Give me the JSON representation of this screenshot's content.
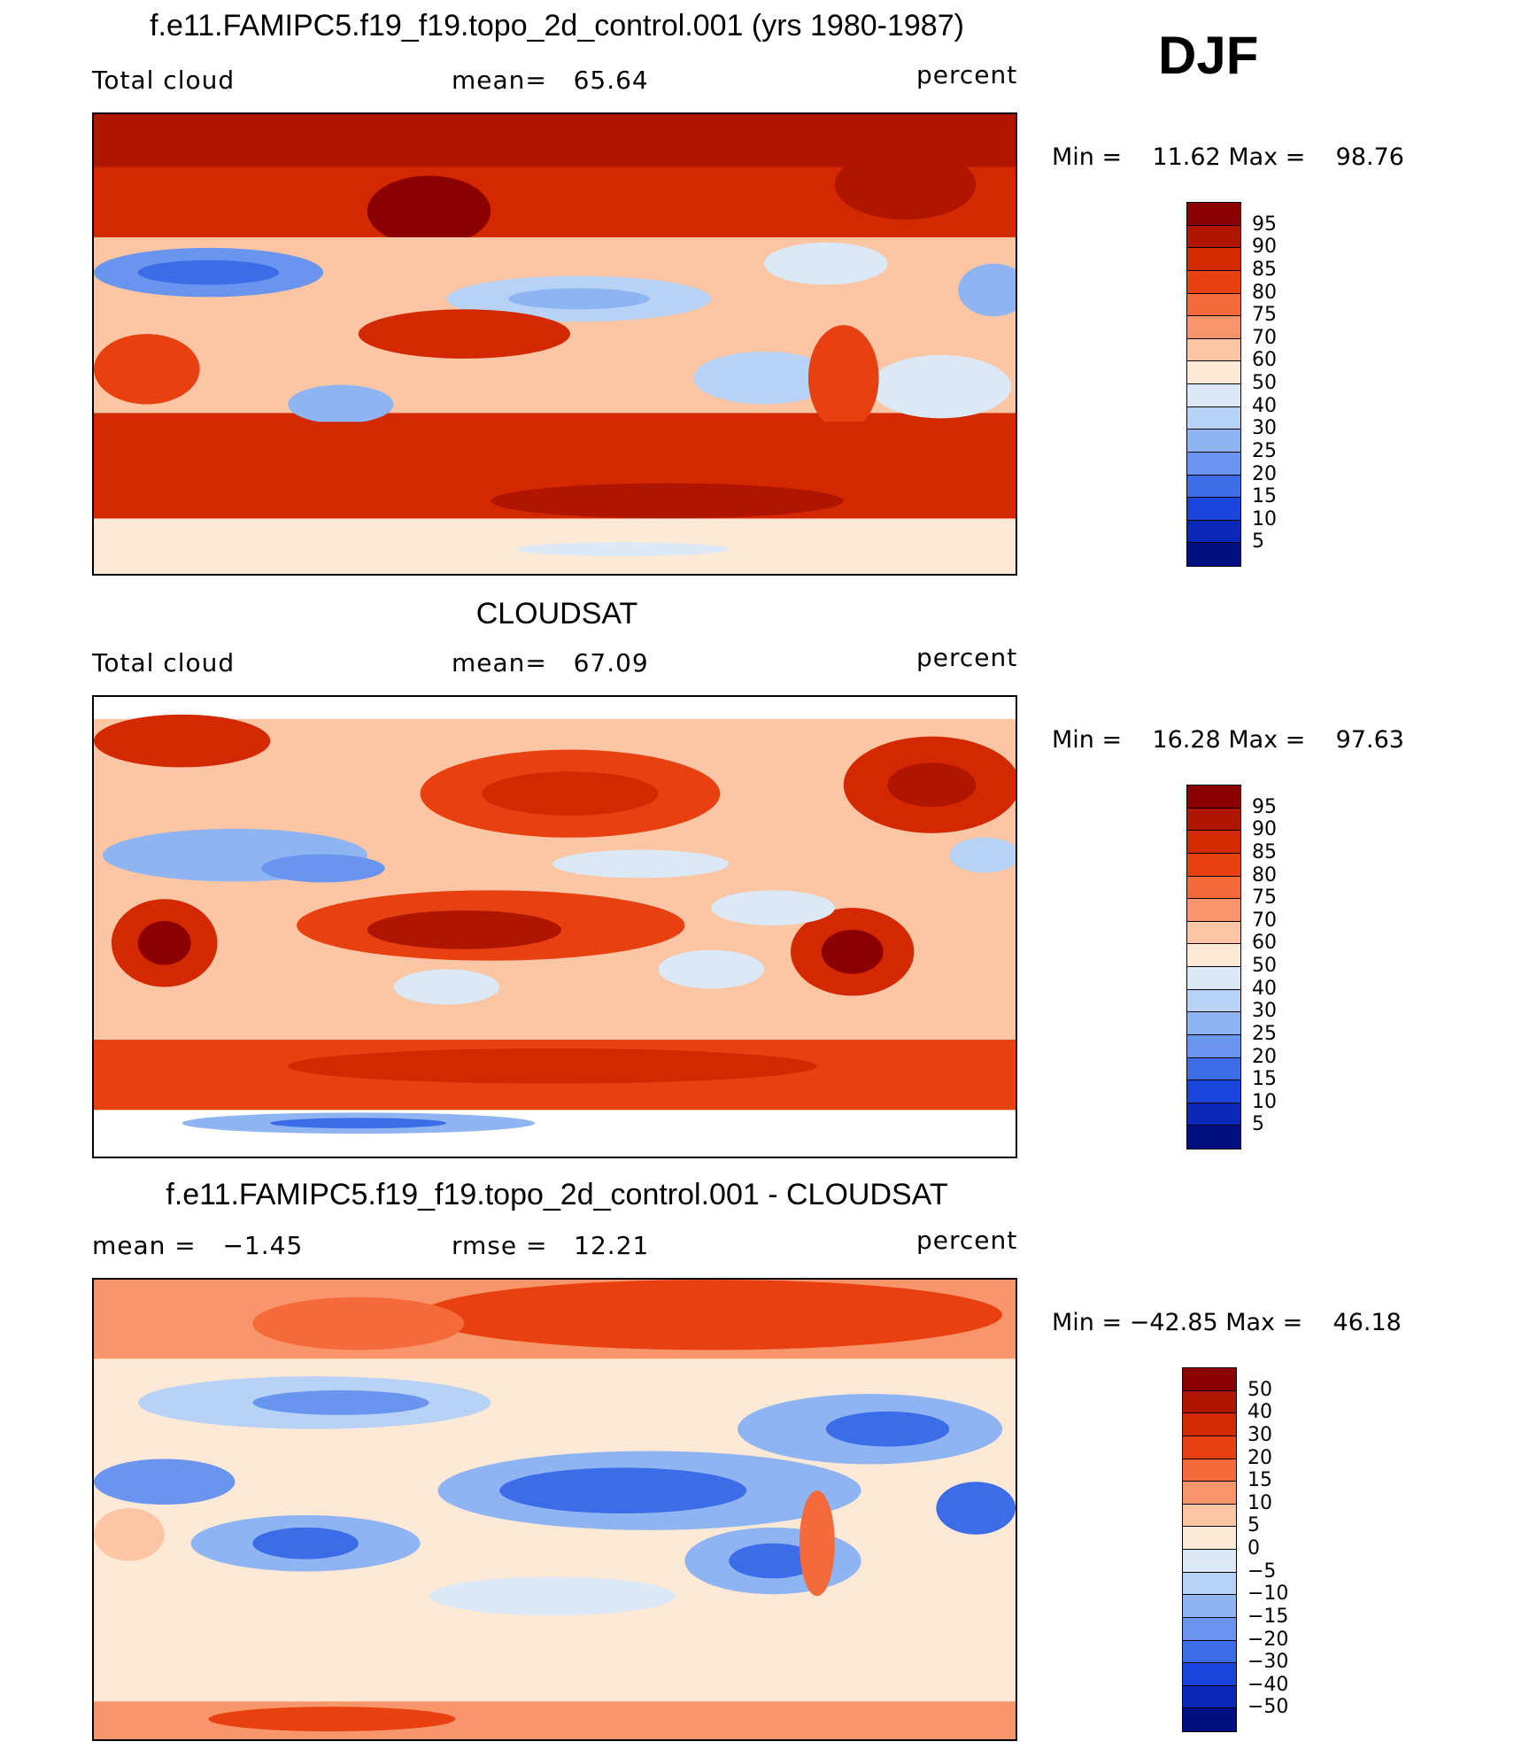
{
  "season": "DJF",
  "panels": [
    {
      "title": "f.e11.FAMIPC5.f19_f19.topo_2d_control.001 (yrs 1980-1987)",
      "left_label": "Total cloud",
      "center_label": "mean=   65.64",
      "right_label": "percent",
      "minmax": "Min =    11.62 Max =    98.76",
      "colorbar": {
        "colors": [
          "#8b0000",
          "#b01500",
          "#d42800",
          "#e84010",
          "#f46a3a",
          "#f9956b",
          "#fcc5a4",
          "#fee8d6",
          "#dbe9f7",
          "#b8d2f5",
          "#8eb4f2",
          "#6a95ee",
          "#3d6ce8",
          "#1a45dc",
          "#0a28b8",
          "#001080"
        ],
        "labels": [
          "95",
          "90",
          "85",
          "80",
          "75",
          "70",
          "60",
          "50",
          "40",
          "30",
          "25",
          "20",
          "15",
          "10",
          "5"
        ]
      },
      "map_levels": [
        "#8b0000",
        "#b01500",
        "#d42800",
        "#e84010",
        "#f46a3a",
        "#f9956b",
        "#fcc5a4",
        "#fee8d6",
        "#dbe9f7",
        "#b8d2f5",
        "#8eb4f2",
        "#6a95ee",
        "#3d6ce8",
        "#1a45dc",
        "#0a28b8",
        "#001080"
      ]
    },
    {
      "title": "CLOUDSAT",
      "left_label": "Total cloud",
      "center_label": "mean=   67.09",
      "right_label": "percent",
      "minmax": "Min =    16.28 Max =    97.63",
      "colorbar": {
        "colors": [
          "#8b0000",
          "#b01500",
          "#d42800",
          "#e84010",
          "#f46a3a",
          "#f9956b",
          "#fcc5a4",
          "#fee8d6",
          "#dbe9f7",
          "#b8d2f5",
          "#8eb4f2",
          "#6a95ee",
          "#3d6ce8",
          "#1a45dc",
          "#0a28b8",
          "#001080"
        ],
        "labels": [
          "95",
          "90",
          "85",
          "80",
          "75",
          "70",
          "60",
          "50",
          "40",
          "30",
          "25",
          "20",
          "15",
          "10",
          "5"
        ]
      }
    },
    {
      "title": "f.e11.FAMIPC5.f19_f19.topo_2d_control.001 - CLOUDSAT",
      "left_label": "mean =   −1.45",
      "center_label": "rmse =   12.21",
      "right_label": "percent",
      "minmax": "Min = −42.85 Max =    46.18",
      "colorbar": {
        "colors": [
          "#8b0000",
          "#b01500",
          "#d42800",
          "#e84010",
          "#f46a3a",
          "#f9956b",
          "#fcc5a4",
          "#fee8d6",
          "#dbe9f7",
          "#b8d2f5",
          "#8eb4f2",
          "#6a95ee",
          "#3d6ce8",
          "#1a45dc",
          "#0a28b8",
          "#001080"
        ],
        "labels": [
          "50",
          "40",
          "30",
          "20",
          "15",
          "10",
          "5",
          "0",
          "−5",
          "−10",
          "−15",
          "−20",
          "−30",
          "−40",
          "−50"
        ]
      }
    }
  ]
}
